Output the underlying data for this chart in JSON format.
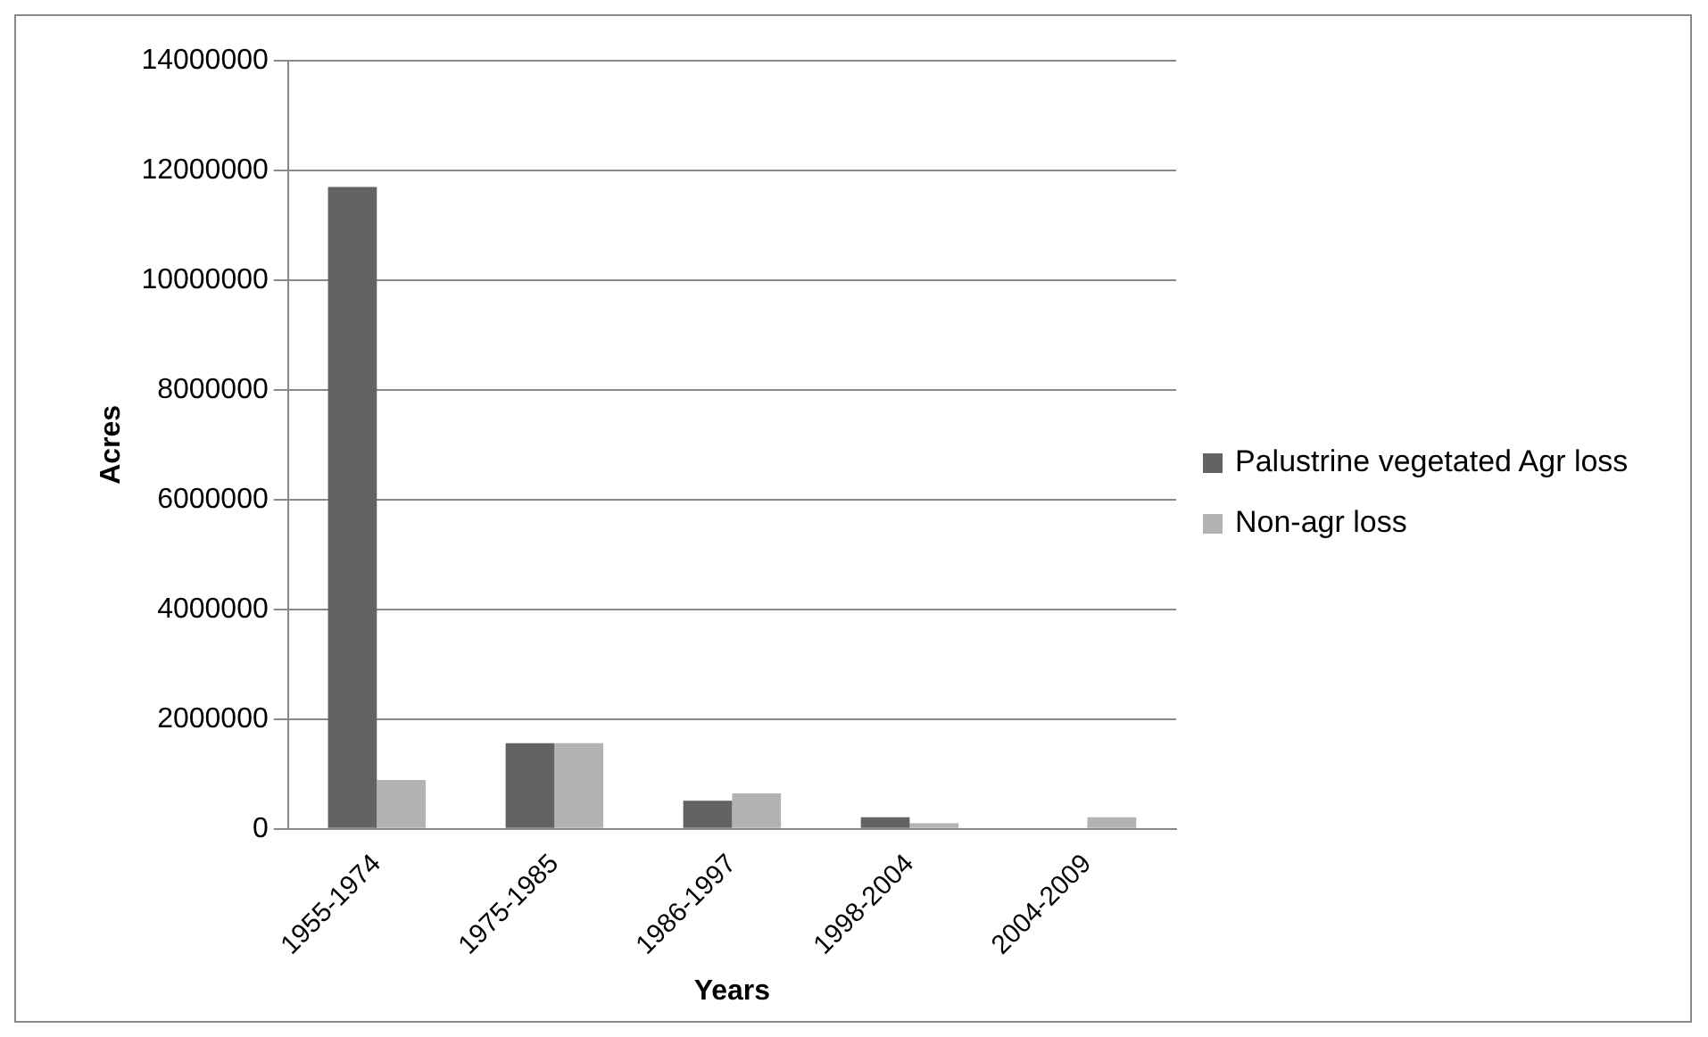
{
  "chart_data": {
    "type": "bar",
    "xlabel": "Years",
    "ylabel": "Acres",
    "categories": [
      "1955-1974",
      "1975-1985",
      "1986-1997",
      "1998-2004",
      "2004-2009"
    ],
    "series": [
      {
        "name": "Palustrine vegetated Agr loss",
        "color": "#636363",
        "values": [
          11700000,
          1560000,
          510000,
          210000,
          0
        ]
      },
      {
        "name": "Non-agr loss",
        "color": "#b3b3b3",
        "values": [
          890000,
          1560000,
          645000,
          100000,
          210000
        ]
      }
    ],
    "ylim": [
      0,
      14000000
    ],
    "yticks": [
      0,
      2000000,
      4000000,
      6000000,
      8000000,
      10000000,
      12000000,
      14000000
    ],
    "grid": "y",
    "legend": "right"
  }
}
